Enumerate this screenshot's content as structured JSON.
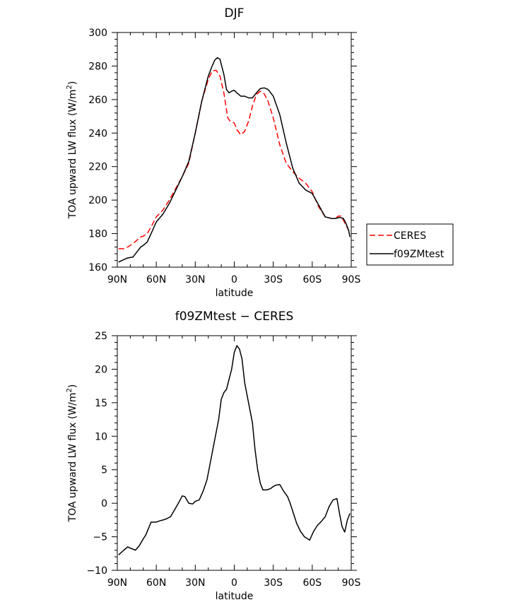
{
  "chart_data": [
    {
      "type": "line",
      "title": "DJF",
      "xlabel": "latitude",
      "ylabel_main": "TOA upward LW flux (W/m",
      "ylabel_sup": "2",
      "ylabel_close": ")",
      "xlim": [
        90,
        -90
      ],
      "ylim": [
        160,
        300
      ],
      "x_ticks": [
        90,
        60,
        30,
        0,
        -30,
        -60,
        -90
      ],
      "x_tick_labels": [
        "90N",
        "60N",
        "30N",
        "0",
        "30S",
        "60S",
        "90S"
      ],
      "y_ticks": [
        160,
        180,
        200,
        220,
        240,
        260,
        280,
        300
      ],
      "y_tick_labels": [
        "160",
        "180",
        "200",
        "220",
        "240",
        "260",
        "280",
        "300"
      ],
      "legend_position": "right",
      "series": [
        {
          "name": "CERES",
          "color": "#ff0000",
          "dash": "dashed",
          "x": [
            89,
            85,
            82,
            78,
            75,
            72,
            70,
            67,
            64,
            60,
            55,
            50,
            45,
            40,
            35,
            30,
            25,
            20,
            17,
            14,
            11,
            8,
            5,
            3,
            0,
            -2,
            -5,
            -8,
            -11,
            -14,
            -17,
            -20,
            -23,
            -26,
            -30,
            -35,
            -40,
            -45,
            -50,
            -55,
            -60,
            -65,
            -70,
            -75,
            -78,
            -80,
            -82,
            -84,
            -86,
            -88,
            -89
          ],
          "values": [
            171,
            171,
            172,
            174,
            176,
            178,
            178.5,
            180,
            184,
            190,
            194,
            200,
            207,
            214,
            222,
            240,
            259,
            272,
            277,
            277.5,
            274,
            264,
            249,
            247,
            246,
            242,
            239,
            241,
            247,
            256,
            263,
            265,
            263.5,
            259,
            249,
            233,
            222,
            217,
            213,
            210,
            205,
            196,
            190,
            189,
            189,
            190.5,
            190.5,
            188,
            185,
            182,
            180
          ]
        },
        {
          "name": "f09ZMtest",
          "color": "#000000",
          "dash": "solid",
          "x": [
            89,
            85,
            82,
            78,
            75,
            72,
            70,
            67,
            64,
            60,
            55,
            50,
            45,
            40,
            35,
            30,
            25,
            20,
            17,
            15,
            13,
            11,
            8,
            6,
            4,
            2,
            0,
            -2,
            -5,
            -8,
            -11,
            -14,
            -17,
            -20,
            -23,
            -26,
            -30,
            -35,
            -40,
            -45,
            -50,
            -55,
            -60,
            -65,
            -70,
            -75,
            -78,
            -80,
            -82,
            -84,
            -86,
            -88,
            -89
          ],
          "values": [
            163,
            164.5,
            165.5,
            166,
            169,
            172,
            173,
            175,
            180,
            187,
            191.5,
            198,
            206,
            214,
            223,
            240,
            259,
            274,
            280,
            283.5,
            285,
            284,
            275,
            266,
            264,
            265,
            265.5,
            264,
            262,
            262,
            261,
            261,
            264,
            266.5,
            267,
            266,
            262,
            251,
            234,
            219,
            210,
            206,
            204,
            197,
            190,
            189,
            189,
            189.5,
            189.5,
            189,
            186,
            182,
            178
          ]
        }
      ]
    },
    {
      "type": "line",
      "title": "f09ZMtest − CERES",
      "xlabel": "latitude",
      "ylabel_main": "TOA upward LW flux (W/m",
      "ylabel_sup": "2",
      "ylabel_close": ")",
      "xlim": [
        90,
        -90
      ],
      "ylim": [
        -10,
        25
      ],
      "x_ticks": [
        90,
        60,
        30,
        0,
        -30,
        -60,
        -90
      ],
      "x_tick_labels": [
        "90N",
        "60N",
        "30N",
        "0",
        "30S",
        "60S",
        "90S"
      ],
      "y_ticks": [
        -10,
        -5,
        0,
        5,
        10,
        15,
        20,
        25
      ],
      "y_tick_labels": [
        "−10",
        "−5",
        "0",
        "5",
        "10",
        "15",
        "20",
        "25"
      ],
      "series": [
        {
          "name": "",
          "color": "#000000",
          "dash": "solid",
          "x": [
            89,
            85,
            82,
            80,
            76,
            73,
            70,
            68,
            64,
            60,
            57,
            55,
            52,
            49,
            46,
            43,
            40,
            38,
            35,
            32,
            30,
            27,
            24,
            21,
            18,
            15,
            12,
            10,
            8,
            6,
            4,
            2,
            0,
            -2,
            -4,
            -6,
            -8,
            -11,
            -14,
            -16,
            -18,
            -20,
            -22,
            -25,
            -28,
            -30,
            -32,
            -35,
            -38,
            -41,
            -43,
            -45,
            -48,
            -51,
            -54,
            -58,
            -61,
            -64,
            -67,
            -70,
            -73,
            -76,
            -79,
            -81,
            -83,
            -85,
            -87,
            -89
          ],
          "values": [
            -7.7,
            -7,
            -6.5,
            -6.7,
            -7,
            -6.3,
            -5.3,
            -4.7,
            -2.8,
            -2.8,
            -2.6,
            -2.5,
            -2.3,
            -2.0,
            -1.0,
            0,
            1.1,
            1.0,
            0,
            -0.1,
            0.3,
            0.5,
            1.8,
            3.5,
            6.5,
            9.5,
            12.5,
            15.5,
            16.5,
            17,
            18.5,
            20,
            22.5,
            23.5,
            23,
            21.5,
            18,
            15,
            12,
            8,
            5,
            3,
            2,
            2,
            2.2,
            2.5,
            2.7,
            2.8,
            1.8,
            1.0,
            0,
            -1.2,
            -3,
            -4.2,
            -5,
            -5.5,
            -4.2,
            -3.3,
            -2.7,
            -2,
            -0.5,
            0.5,
            0.7,
            -1.5,
            -3.5,
            -4.3,
            -2.5,
            -1.5
          ]
        }
      ]
    }
  ]
}
